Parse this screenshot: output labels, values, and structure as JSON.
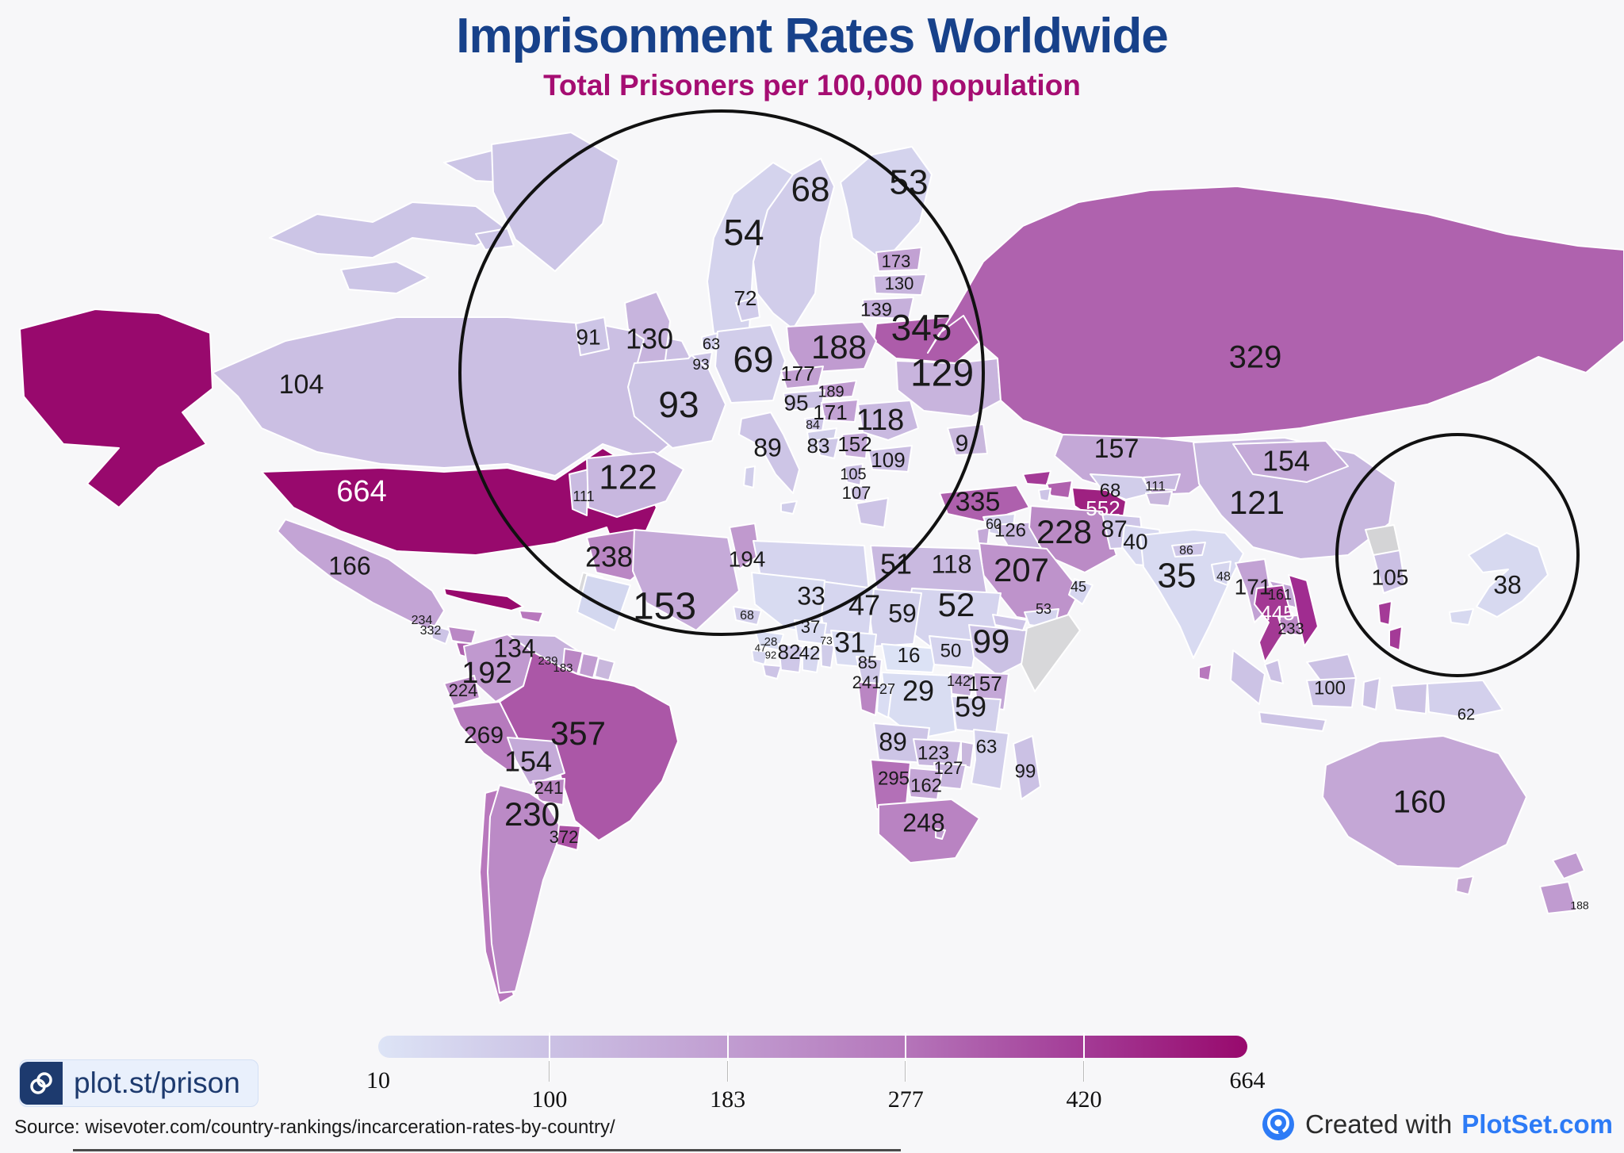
{
  "title": "Imprisonment Rates Worldwide",
  "subtitle": "Total Prisoners per 100,000 population",
  "badge": {
    "link_text": "plot.st/prison"
  },
  "source_text": "Source: wisevoter.com/country-rankings/incarceration-rates-by-country/",
  "footer": {
    "created_with": "Created with ",
    "brand": "PlotSet.com"
  },
  "colors": {
    "title": "#17418a",
    "subtitle": "#a50d72",
    "brand_blue": "#2d7bf6",
    "badge_navy": "#1d3a6e",
    "no_data_gray": "#d8d8da",
    "scale_min": "#dde4f6",
    "scale_max": "#98096d"
  },
  "legend": {
    "ticks": [
      10,
      100,
      183,
      277,
      420,
      664
    ],
    "gradient": [
      "#dde4f6",
      "#cbc1e4",
      "#c19dd1",
      "#b577bb",
      "#a43e98",
      "#98096d"
    ]
  },
  "clipped_labels": [
    {
      "text": "9"
    }
  ],
  "chart_data": {
    "type": "choropleth",
    "title": "Imprisonment Rates Worldwide",
    "subtitle": "Total Prisoners per 100,000 population",
    "unit": "total prisoners per 100,000 population",
    "domain": [
      10,
      664
    ],
    "legend_ticks": [
      10,
      100,
      183,
      277,
      420,
      664
    ],
    "countries": [
      {
        "code": "CA",
        "name": "Canada",
        "value": 104
      },
      {
        "code": "US",
        "name": "United States",
        "value": 664
      },
      {
        "code": "MX",
        "name": "Mexico",
        "value": 166
      },
      {
        "code": "HN",
        "name": "Honduras",
        "value": 234
      },
      {
        "code": "NI",
        "name": "Nicaragua",
        "value": 332
      },
      {
        "code": "VE",
        "name": "Venezuela",
        "value": 134
      },
      {
        "code": "GY",
        "name": "Guyana",
        "value": 239
      },
      {
        "code": "SR",
        "name": "Suriname",
        "value": 183
      },
      {
        "code": "CO",
        "name": "Colombia",
        "value": 192
      },
      {
        "code": "EC",
        "name": "Ecuador",
        "value": 224
      },
      {
        "code": "PE",
        "name": "Peru",
        "value": 269
      },
      {
        "code": "BO",
        "name": "Bolivia",
        "value": 154
      },
      {
        "code": "BR",
        "name": "Brazil",
        "value": 357
      },
      {
        "code": "PY",
        "name": "Paraguay",
        "value": 241
      },
      {
        "code": "AR",
        "name": "Argentina",
        "value": 230
      },
      {
        "code": "UY",
        "name": "Uruguay",
        "value": 372
      },
      {
        "code": "IS",
        "name": "Iceland",
        "value": null
      },
      {
        "code": "NO",
        "name": "Norway",
        "value": 54
      },
      {
        "code": "SE",
        "name": "Sweden",
        "value": 68
      },
      {
        "code": "FI",
        "name": "Finland",
        "value": 53
      },
      {
        "code": "DK",
        "name": "Denmark",
        "value": 72
      },
      {
        "code": "EE",
        "name": "Estonia",
        "value": 173
      },
      {
        "code": "LV",
        "name": "Latvia",
        "value": 130
      },
      {
        "code": "LT",
        "name": "Lithuania",
        "value": 139
      },
      {
        "code": "BY",
        "name": "Belarus",
        "value": 345
      },
      {
        "code": "IE",
        "name": "Ireland",
        "value": 91
      },
      {
        "code": "GB",
        "name": "United Kingdom",
        "value": 130
      },
      {
        "code": "NL",
        "name": "Netherlands",
        "value": 63
      },
      {
        "code": "BE",
        "name": "Belgium",
        "value": 93
      },
      {
        "code": "DE",
        "name": "Germany",
        "value": 69
      },
      {
        "code": "PL",
        "name": "Poland",
        "value": 188
      },
      {
        "code": "CZ",
        "name": "Czechia",
        "value": 177
      },
      {
        "code": "UA",
        "name": "Ukraine",
        "value": 129
      },
      {
        "code": "AT",
        "name": "Austria",
        "value": 95
      },
      {
        "code": "SK",
        "name": "Slovakia",
        "value": 189
      },
      {
        "code": "HU",
        "name": "Hungary",
        "value": 171
      },
      {
        "code": "SI",
        "name": "Slovenia",
        "value": 84
      },
      {
        "code": "BA",
        "name": "Bosnia and Herzegovina",
        "value": 83
      },
      {
        "code": "RS",
        "name": "Serbia",
        "value": 152
      },
      {
        "code": "RO",
        "name": "Romania",
        "value": 118
      },
      {
        "code": "BG",
        "name": "Bulgaria",
        "value": 109
      },
      {
        "code": "AL",
        "name": "Albania",
        "value": 105
      },
      {
        "code": "MK",
        "name": "North Macedonia",
        "value": 107
      },
      {
        "code": "IT",
        "name": "Italy",
        "value": 89
      },
      {
        "code": "FR",
        "name": "France",
        "value": 93
      },
      {
        "code": "ES",
        "name": "Spain",
        "value": 122
      },
      {
        "code": "PT",
        "name": "Portugal",
        "value": 111
      },
      {
        "code": "MA",
        "name": "Morocco",
        "value": 238
      },
      {
        "code": "DZ",
        "name": "Algeria",
        "value": 153
      },
      {
        "code": "TN",
        "name": "Tunisia",
        "value": 194
      },
      {
        "code": "LY",
        "name": "Libya",
        "value": 51
      },
      {
        "code": "EG",
        "name": "Egypt",
        "value": 118
      },
      {
        "code": "TR",
        "name": "Turkey",
        "value": 335
      },
      {
        "code": "SY",
        "name": "Syria",
        "value": 60
      },
      {
        "code": "IQ",
        "name": "Iraq",
        "value": 126
      },
      {
        "code": "IR",
        "name": "Iran",
        "value": 228
      },
      {
        "code": "SA",
        "name": "Saudi Arabia",
        "value": 207
      },
      {
        "code": "OM",
        "name": "Oman",
        "value": 45
      },
      {
        "code": "YE",
        "name": "Yemen",
        "value": 53
      },
      {
        "code": "SD",
        "name": "Sudan",
        "value": 52
      },
      {
        "code": "ML",
        "name": "Mali",
        "value": 33
      },
      {
        "code": "NE",
        "name": "Niger",
        "value": 47
      },
      {
        "code": "TD",
        "name": "Chad",
        "value": 59
      },
      {
        "code": "BF",
        "name": "Burkina Faso",
        "value": 37
      },
      {
        "code": "SN",
        "name": "Senegal",
        "value": 68
      },
      {
        "code": "GN",
        "name": "Guinea",
        "value": 28
      },
      {
        "code": "SL",
        "name": "Sierra Leone",
        "value": 47
      },
      {
        "code": "LR",
        "name": "Liberia",
        "value": 92
      },
      {
        "code": "CI",
        "name": "Cote d'Ivoire",
        "value": 82
      },
      {
        "code": "GH",
        "name": "Ghana",
        "value": 42
      },
      {
        "code": "BJ",
        "name": "Benin",
        "value": 73
      },
      {
        "code": "NG",
        "name": "Nigeria",
        "value": 31
      },
      {
        "code": "CM",
        "name": "Cameroon",
        "value": 85
      },
      {
        "code": "CF",
        "name": "Central African Republic",
        "value": 16
      },
      {
        "code": "SS",
        "name": "South Sudan",
        "value": 50
      },
      {
        "code": "ET",
        "name": "Ethiopia",
        "value": 99
      },
      {
        "code": "GA",
        "name": "Gabon",
        "value": 241
      },
      {
        "code": "CG",
        "name": "Republic of the Congo",
        "value": 27
      },
      {
        "code": "CD",
        "name": "DR Congo",
        "value": 29
      },
      {
        "code": "UG",
        "name": "Uganda",
        "value": 142
      },
      {
        "code": "KE",
        "name": "Kenya",
        "value": 157
      },
      {
        "code": "TZ",
        "name": "Tanzania",
        "value": 59
      },
      {
        "code": "AO",
        "name": "Angola",
        "value": 89
      },
      {
        "code": "ZM",
        "name": "Zambia",
        "value": 123
      },
      {
        "code": "ZW",
        "name": "Zimbabwe",
        "value": 127
      },
      {
        "code": "MZ",
        "name": "Mozambique",
        "value": 63
      },
      {
        "code": "MG",
        "name": "Madagascar",
        "value": 99
      },
      {
        "code": "NA",
        "name": "Namibia",
        "value": 295
      },
      {
        "code": "BW",
        "name": "Botswana",
        "value": 162
      },
      {
        "code": "ZA",
        "name": "South Africa",
        "value": 248
      },
      {
        "code": "RU",
        "name": "Russia",
        "value": 329
      },
      {
        "code": "KZ",
        "name": "Kazakhstan",
        "value": 157
      },
      {
        "code": "UZ",
        "name": "Uzbekistan",
        "value": 68
      },
      {
        "code": "TM",
        "name": "Turkmenistan",
        "value": 552
      },
      {
        "code": "KG",
        "name": "Kyrgyzstan",
        "value": 111
      },
      {
        "code": "AF",
        "name": "Afghanistan",
        "value": 87
      },
      {
        "code": "PK",
        "name": "Pakistan",
        "value": 40
      },
      {
        "code": "IN",
        "name": "India",
        "value": 35
      },
      {
        "code": "NP",
        "name": "Nepal",
        "value": 86
      },
      {
        "code": "BD",
        "name": "Bangladesh",
        "value": 48
      },
      {
        "code": "CN",
        "name": "China",
        "value": 121
      },
      {
        "code": "MN",
        "name": "Mongolia",
        "value": 154
      },
      {
        "code": "MM",
        "name": "Myanmar",
        "value": 171
      },
      {
        "code": "LA",
        "name": "Laos",
        "value": 161
      },
      {
        "code": "TH",
        "name": "Thailand",
        "value": 445
      },
      {
        "code": "KH",
        "name": "Cambodia",
        "value": 233
      },
      {
        "code": "KR",
        "name": "South Korea",
        "value": 105
      },
      {
        "code": "JP",
        "name": "Japan",
        "value": 38
      },
      {
        "code": "MY",
        "name": "Malaysia",
        "value": 100
      },
      {
        "code": "PG",
        "name": "Papua New Guinea",
        "value": 62
      },
      {
        "code": "AU",
        "name": "Australia",
        "value": 160
      },
      {
        "code": "NZ",
        "name": "New Zealand",
        "value": 188
      }
    ]
  }
}
